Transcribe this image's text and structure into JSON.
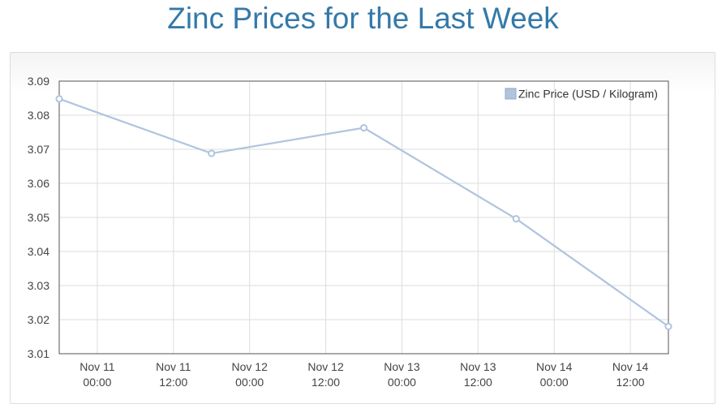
{
  "page": {
    "title": "Zinc Prices for the Last Week"
  },
  "colors": {
    "title": "#3479a8",
    "series": "#b0c4de",
    "grid": "#dddddd",
    "axis": "#555555"
  },
  "chart_data": {
    "type": "line",
    "title": "Zinc Prices for the Last Week",
    "xlabel": "",
    "ylabel": "",
    "x_ticks": [
      [
        "Nov 11",
        "00:00"
      ],
      [
        "Nov 11",
        "12:00"
      ],
      [
        "Nov 12",
        "00:00"
      ],
      [
        "Nov 12",
        "12:00"
      ],
      [
        "Nov 13",
        "00:00"
      ],
      [
        "Nov 13",
        "12:00"
      ],
      [
        "Nov 14",
        "00:00"
      ],
      [
        "Nov 14",
        "12:00"
      ]
    ],
    "x_tick_values": [
      "2023-11-11T00:00",
      "2023-11-11T12:00",
      "2023-11-12T00:00",
      "2023-11-12T12:00",
      "2023-11-13T00:00",
      "2023-11-13T12:00",
      "2023-11-14T00:00",
      "2023-11-14T12:00"
    ],
    "xlim": [
      "2023-11-10T18:00",
      "2023-11-14T18:00"
    ],
    "ylim": [
      3.01,
      3.09
    ],
    "y_ticks": [
      "3.01",
      "3.02",
      "3.03",
      "3.04",
      "3.05",
      "3.06",
      "3.07",
      "3.08",
      "3.09"
    ],
    "grid": true,
    "legend_position": "top-right",
    "series": [
      {
        "name": "Zinc Price (USD / Kilogram)",
        "color": "#b0c4de",
        "x": [
          "2023-11-10T18:00",
          "2023-11-11T18:00",
          "2023-11-12T18:00",
          "2023-11-13T18:00",
          "2023-11-14T18:00"
        ],
        "values": [
          3.0848,
          3.0688,
          3.0763,
          3.0496,
          3.018
        ]
      }
    ]
  }
}
